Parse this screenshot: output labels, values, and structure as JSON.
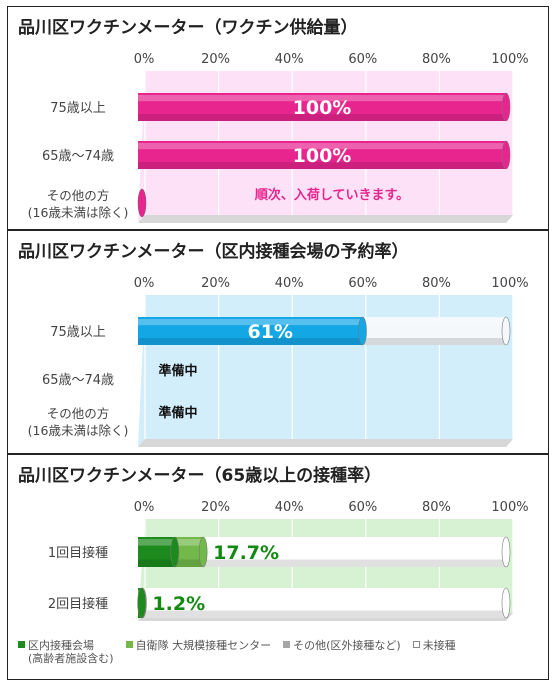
{
  "chart_data": [
    {
      "type": "bar",
      "title": "品川区ワクチンメーター（ワクチン供給量）",
      "tick_labels": [
        "0%",
        "20%",
        "40%",
        "60%",
        "80%",
        "100%"
      ],
      "xlim": [
        0,
        100
      ],
      "grid": true,
      "background": "#fde2f7",
      "categories": [
        {
          "label": "75歳以上",
          "value": 100,
          "data_label": "100%"
        },
        {
          "label": "65歳～74歳",
          "value": 100,
          "data_label": "100%"
        },
        {
          "label_lines": [
            "その他の方",
            "(16歳未満は除く)"
          ],
          "value": 0,
          "data_label": "順次、入荷していきます。"
        }
      ],
      "bar_color": "#e8258f"
    },
    {
      "type": "bar",
      "title": "品川区ワクチンメーター（区内接種会場の予約率）",
      "tick_labels": [
        "0%",
        "20%",
        "40%",
        "60%",
        "80%",
        "100%"
      ],
      "xlim": [
        0,
        100
      ],
      "grid": true,
      "background": "#d3eefb",
      "categories": [
        {
          "label": "75歳以上",
          "value": 61,
          "data_label": "61%"
        },
        {
          "label": "65歳～74歳",
          "value": null,
          "data_label": "準備中"
        },
        {
          "label_lines": [
            "その他の方",
            "(16歳未満は除く)"
          ],
          "value": null,
          "data_label": "準備中"
        }
      ],
      "bar_color": "#14a7e6"
    },
    {
      "type": "bar",
      "stacked": true,
      "title": "品川区ワクチンメーター（65歳以上の接種率）",
      "tick_labels": [
        "0%",
        "20%",
        "40%",
        "60%",
        "80%",
        "100%"
      ],
      "xlim": [
        0,
        100
      ],
      "grid": true,
      "background": "#d6f2d3",
      "categories": [
        "1回目接種",
        "2回目接種"
      ],
      "series": [
        {
          "name": "区内接種会場",
          "name_sub": "(高齢者施設含む)",
          "color": "#1c8a1c",
          "values": [
            10.0,
            1.0
          ]
        },
        {
          "name": "自衛隊 大規模接種センター",
          "color": "#72b84a",
          "values": [
            7.7,
            0.2
          ]
        },
        {
          "name": "その他(区外接種など)",
          "color": "#a6a6a6",
          "values": [
            0,
            0
          ]
        },
        {
          "name": "未接種",
          "color": "#ffffff",
          "values": [
            82.3,
            98.8
          ]
        }
      ],
      "data_labels": [
        "17.7%",
        "1.2%"
      ],
      "data_label_color": "#128a12"
    }
  ]
}
